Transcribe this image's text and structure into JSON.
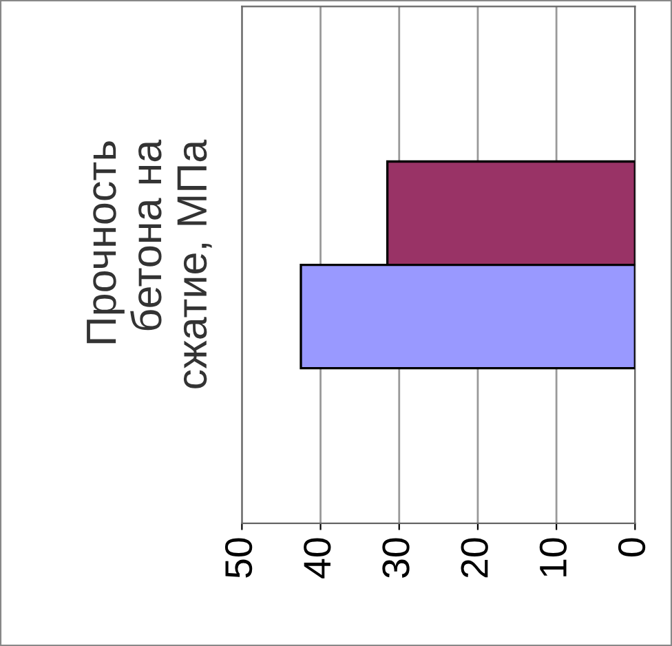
{
  "chart_data": {
    "type": "bar",
    "orientation": "horizontal",
    "categories": [
      "Прочность бетона на сжатие, МПа"
    ],
    "series": [
      {
        "color": "#993366",
        "values": [
          31.5
        ]
      },
      {
        "color": "#9999ff",
        "values": [
          42.5
        ]
      }
    ],
    "xlim": [
      50,
      0
    ],
    "xticks": [
      50,
      40,
      30,
      20,
      10,
      0
    ],
    "grid": "x",
    "legend": false
  }
}
